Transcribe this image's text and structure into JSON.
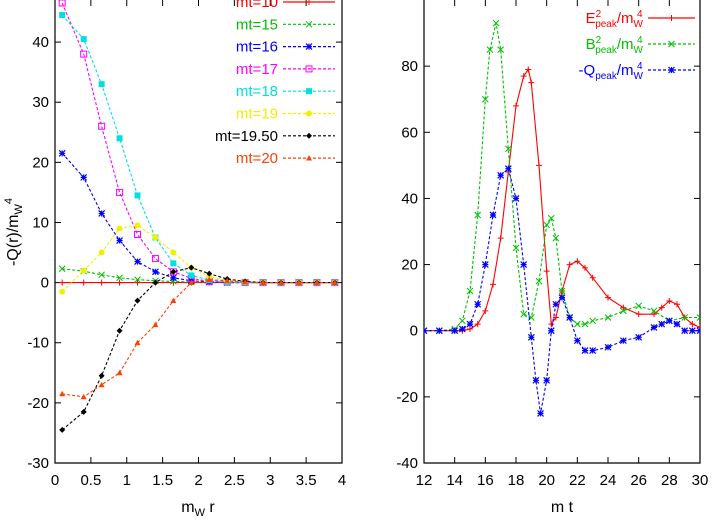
{
  "chart_data": [
    {
      "type": "line",
      "title": "",
      "xlabel": "m",
      "xlabel_sub": "W",
      "xlabel_tail": " r",
      "ylabel": "-Q(r)/m",
      "ylabel_sub": "W",
      "ylabel_sup": "4",
      "xlim": [
        0,
        4
      ],
      "ylim": [
        -30,
        47
      ],
      "xticks": [
        0,
        0.5,
        1,
        1.5,
        2,
        2.5,
        3,
        3.5,
        4
      ],
      "xtick_labels": [
        "0",
        "0.5",
        "1",
        "1.5",
        "2",
        "2.5",
        "3",
        "3.5",
        "4"
      ],
      "yticks": [
        -30,
        -20,
        -10,
        0,
        10,
        20,
        30,
        40
      ],
      "ytick_labels": [
        "-30",
        "-20",
        "-10",
        "0",
        "10",
        "20",
        "30",
        "40"
      ],
      "legend_position": "top-right",
      "series": [
        {
          "name": "mt=10",
          "color": "#ff0000",
          "marker": "plus",
          "x": [
            0.1,
            0.4,
            0.65,
            0.9,
            1.15,
            1.4,
            1.65,
            1.9,
            2.15,
            2.4,
            2.65,
            2.9,
            3.15,
            3.4,
            3.65,
            3.9
          ],
          "y": [
            0,
            0,
            0,
            0,
            0,
            0,
            0,
            0,
            0,
            0,
            0,
            0,
            0,
            0,
            0,
            0
          ]
        },
        {
          "name": "mt=15",
          "color": "#00c000",
          "marker": "x",
          "x": [
            0.1,
            0.4,
            0.65,
            0.9,
            1.15,
            1.4,
            1.65,
            1.9,
            2.15,
            2.4,
            2.65,
            2.9,
            3.15,
            3.4,
            3.65,
            3.9
          ],
          "y": [
            2.3,
            1.9,
            1.3,
            0.8,
            0.5,
            0.3,
            0.2,
            0.1,
            0.05,
            0,
            0,
            0,
            0,
            0,
            0,
            0
          ]
        },
        {
          "name": "mt=16",
          "color": "#0000ff",
          "marker": "star",
          "x": [
            0.1,
            0.4,
            0.65,
            0.9,
            1.15,
            1.4,
            1.65,
            1.9,
            2.15,
            2.4,
            2.65,
            2.9,
            3.15,
            3.4,
            3.65,
            3.9
          ],
          "y": [
            21.5,
            17.5,
            11.5,
            7,
            3.5,
            1.8,
            0.8,
            0.3,
            0.1,
            0,
            0,
            0,
            0,
            0,
            0,
            0
          ]
        },
        {
          "name": "mt=17",
          "color": "#ff00ff",
          "marker": "square",
          "x": [
            0.1,
            0.4,
            0.65,
            0.9,
            1.15,
            1.4,
            1.65,
            1.9,
            2.15,
            2.4,
            2.65,
            2.9,
            3.15,
            3.4,
            3.65,
            3.9
          ],
          "y": [
            46.5,
            38,
            26,
            15,
            8,
            4,
            1.8,
            0.7,
            0.2,
            0.1,
            0,
            0,
            0,
            0,
            0,
            0
          ]
        },
        {
          "name": "mt=18",
          "color": "#00e0e0",
          "marker": "filledsquare",
          "x": [
            0.1,
            0.4,
            0.65,
            0.9,
            1.15,
            1.4,
            1.65,
            1.9,
            2.15,
            2.4,
            2.65,
            2.9,
            3.15,
            3.4,
            3.65,
            3.9
          ],
          "y": [
            44.5,
            40.5,
            33,
            24,
            14.5,
            7.5,
            3.2,
            1.2,
            0.4,
            0.1,
            0,
            0,
            0,
            0,
            0,
            0
          ]
        },
        {
          "name": "mt=19",
          "color": "#f0f000",
          "marker": "circle",
          "x": [
            0.1,
            0.4,
            0.65,
            0.9,
            1.15,
            1.4,
            1.65,
            1.9,
            2.15,
            2.4,
            2.65,
            2.9,
            3.15,
            3.4,
            3.65,
            3.9
          ],
          "y": [
            -1.5,
            2,
            5,
            9,
            9.5,
            7.5,
            5,
            2.5,
            1,
            0.3,
            0.1,
            0,
            0,
            0,
            0,
            0
          ]
        },
        {
          "name": "mt=19.50",
          "color": "#000000",
          "marker": "diamond",
          "x": [
            0.1,
            0.4,
            0.65,
            0.9,
            1.15,
            1.4,
            1.65,
            1.9,
            2.15,
            2.4,
            2.65,
            2.9,
            3.15,
            3.4,
            3.65,
            3.9
          ],
          "y": [
            -24.5,
            -21.5,
            -15.5,
            -8,
            -3,
            0,
            1.8,
            2.5,
            1.5,
            0.6,
            0.2,
            0,
            0,
            0,
            0,
            0
          ]
        },
        {
          "name": "mt=20",
          "color": "#ff4000",
          "marker": "triangle",
          "x": [
            0.1,
            0.4,
            0.65,
            0.9,
            1.15,
            1.4,
            1.65,
            1.9,
            2.15,
            2.4,
            2.65,
            2.9,
            3.15,
            3.4,
            3.65,
            3.9
          ],
          "y": [
            -18.5,
            -19,
            -17,
            -15,
            -10,
            -7,
            -3,
            0,
            0.5,
            0.3,
            0.1,
            0,
            0,
            0,
            0,
            0
          ]
        }
      ]
    },
    {
      "type": "line",
      "title": "",
      "xlabel": "m t",
      "ylabel": "",
      "xlim": [
        12,
        30
      ],
      "ylim": [
        -40,
        100
      ],
      "xticks": [
        12,
        14,
        16,
        18,
        20,
        22,
        24,
        26,
        28,
        30
      ],
      "xtick_labels": [
        "12",
        "14",
        "16",
        "18",
        "20",
        "22",
        "24",
        "26",
        "28",
        "30"
      ],
      "yticks": [
        -40,
        -20,
        0,
        20,
        40,
        60,
        80
      ],
      "ytick_labels": [
        "-40",
        "-20",
        "0",
        "20",
        "40",
        "60",
        "80"
      ],
      "legend_position": "top-right",
      "series": [
        {
          "name": "E",
          "name_sup": "2",
          "name_sub": "peak",
          "name_tail": "/m",
          "name_tail_sub": "W",
          "name_tail_sup": "4",
          "color": "#ff0000",
          "marker": "plus",
          "x": [
            12,
            13,
            14,
            14.5,
            15,
            15.5,
            16,
            16.5,
            17,
            17.5,
            18,
            18.5,
            18.8,
            19,
            19.5,
            20,
            20.3,
            20.6,
            21,
            21.5,
            22,
            22.5,
            23,
            24,
            25,
            26,
            27,
            27.5,
            28,
            28.5,
            29,
            29.5,
            30
          ],
          "y": [
            0,
            0,
            0,
            0,
            0.5,
            2,
            6,
            14,
            28,
            48,
            68,
            77,
            79,
            75,
            50,
            18,
            2,
            4,
            12,
            20,
            21,
            19,
            16,
            10,
            7,
            5,
            5,
            7,
            9,
            8,
            4,
            2,
            1
          ]
        },
        {
          "name": "B",
          "name_sup": "2",
          "name_sub": "peak",
          "name_tail": "/m",
          "name_tail_sub": "W",
          "name_tail_sup": "4",
          "color": "#00c000",
          "marker": "x",
          "x": [
            12,
            13,
            14,
            14.5,
            15,
            15.5,
            16,
            16.3,
            16.7,
            17,
            17.5,
            18,
            18.5,
            19,
            19.5,
            20,
            20.3,
            20.6,
            21,
            21.5,
            22,
            22.5,
            23,
            24,
            25,
            26,
            27,
            28,
            29,
            30
          ],
          "y": [
            0,
            0,
            0.5,
            3,
            12,
            35,
            70,
            85,
            93,
            85,
            55,
            25,
            5,
            4,
            15,
            32,
            34,
            28,
            12,
            4,
            2,
            2,
            3,
            4,
            6,
            7.5,
            6,
            3,
            4,
            4
          ]
        },
        {
          "name": "-Q",
          "name_sub": "peak",
          "name_tail": "/m",
          "name_tail_sub": "W",
          "name_tail_sup": "4",
          "color": "#0000ff",
          "marker": "star",
          "x": [
            12,
            13,
            14,
            14.5,
            15,
            15.5,
            16,
            16.5,
            17,
            17.5,
            18,
            18.5,
            19,
            19.3,
            19.6,
            20,
            20.3,
            20.6,
            21,
            21.5,
            22,
            22.5,
            23,
            24,
            25,
            26,
            27,
            27.5,
            28,
            28.5,
            29,
            29.5,
            30
          ],
          "y": [
            0,
            0,
            0,
            0.5,
            2,
            8,
            20,
            35,
            47,
            49,
            40,
            20,
            -2,
            -15,
            -25,
            -15,
            0,
            8,
            10,
            4,
            -3,
            -6,
            -6,
            -5,
            -3,
            -2,
            1,
            2,
            3,
            2,
            0,
            0,
            0
          ]
        }
      ]
    }
  ]
}
